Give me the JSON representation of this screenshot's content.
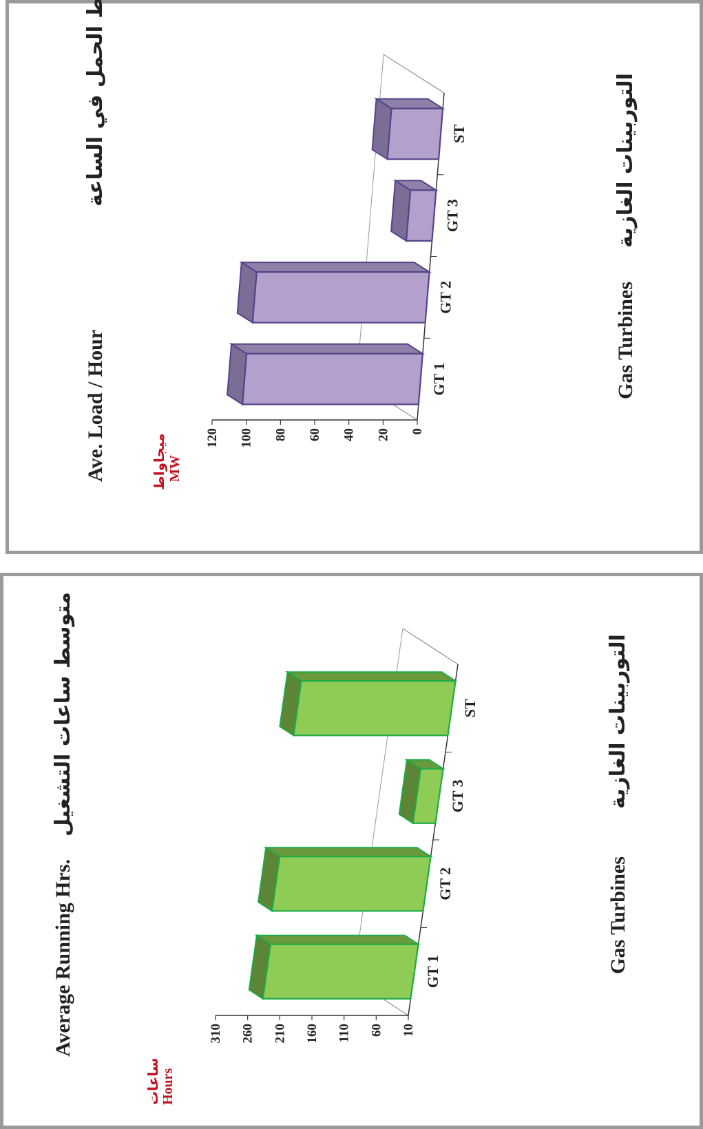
{
  "charts": [
    {
      "id": "load",
      "chart_data": {
        "type": "bar",
        "title": "Ave. Load / Hour",
        "title_ar": "متوسط الحمل في الساعة",
        "xlabel": "Gas Turbines",
        "xlabel_ar": "التوربينات الغازية",
        "ylabel": "MW",
        "ylabel_ar": "ميجاواط",
        "categories": [
          "GT 1",
          "GT 2",
          "GT 3",
          "ST"
        ],
        "values": [
          103,
          101,
          15,
          30
        ],
        "ylim": [
          0,
          120
        ],
        "yticks": [
          0,
          20,
          40,
          60,
          80,
          100,
          120
        ],
        "grid": false,
        "legend": "none",
        "style": "3d"
      },
      "colors": {
        "front": "#b3a0cc",
        "top": "#7b6d95",
        "side": "#8f80aa",
        "edge": "#54438a"
      }
    },
    {
      "id": "hours",
      "chart_data": {
        "type": "bar",
        "title": "Average Running Hrs.",
        "title_ar": "متوسط ساعات التشغيل",
        "xlabel": "Gas Turbines",
        "xlabel_ar": "التوربينات الغازية",
        "ylabel": "Hours",
        "ylabel_ar": "ساعات",
        "categories": [
          "GT 1",
          "GT 2",
          "GT 3",
          "ST"
        ],
        "values": [
          240,
          245,
          45,
          250
        ],
        "ylim": [
          10,
          310
        ],
        "yticks": [
          10,
          60,
          110,
          160,
          210,
          260,
          310
        ],
        "grid": false,
        "legend": "none",
        "style": "3d"
      },
      "colors": {
        "front": "#8fcc55",
        "top": "#5c8535",
        "side": "#6a9a3c",
        "edge": "#1daa48"
      }
    }
  ]
}
